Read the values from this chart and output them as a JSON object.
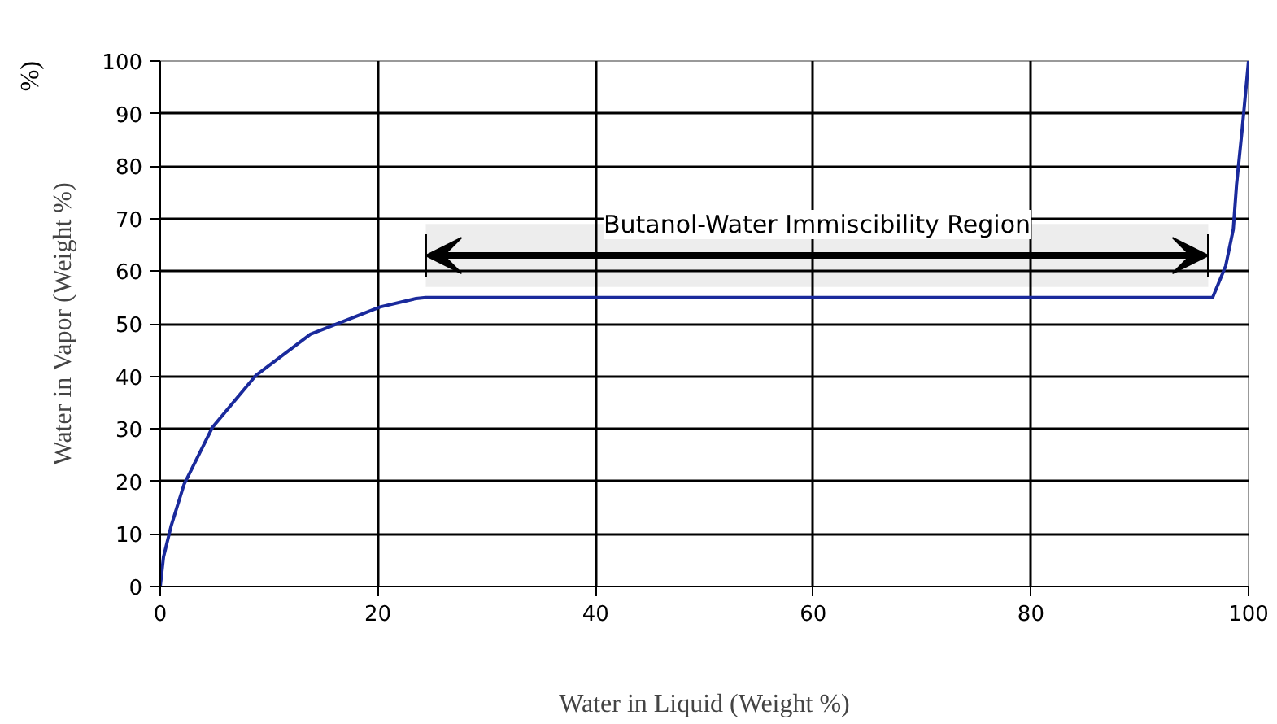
{
  "chart_data": {
    "type": "line",
    "xlabel": "Water in Liquid (Weight %)",
    "ylabel": "Water in Vapor (Weight %)",
    "x": [
      0,
      0.3,
      1.0,
      2.2,
      4.8,
      8.8,
      13.8,
      20.2,
      23.5,
      24.4,
      40,
      60,
      80,
      96.7,
      97.9,
      98.6,
      98.9,
      99.4,
      100
    ],
    "series": [
      {
        "color": "#1a2a9c",
        "values": [
          0,
          5.6,
          11.5,
          19.5,
          30.3,
          40.2,
          48,
          53.2,
          54.8,
          55,
          55,
          55,
          55,
          55,
          61,
          68,
          76.5,
          86.7,
          100
        ]
      }
    ],
    "xlim": [
      0,
      100
    ],
    "ylim": [
      0,
      100
    ],
    "xticks": [
      0,
      20,
      40,
      60,
      80,
      100
    ],
    "yticks": [
      0,
      10,
      20,
      30,
      40,
      50,
      60,
      70,
      80,
      90,
      100
    ],
    "grid": true,
    "marker": "none",
    "line_style": "solid",
    "bands": [
      {
        "axis": "x",
        "from": 24.4,
        "to": 96.3,
        "label": "Butanol-Water Immiscibility Region",
        "color": "#000000"
      }
    ],
    "annotations": [
      "%)"
    ]
  }
}
